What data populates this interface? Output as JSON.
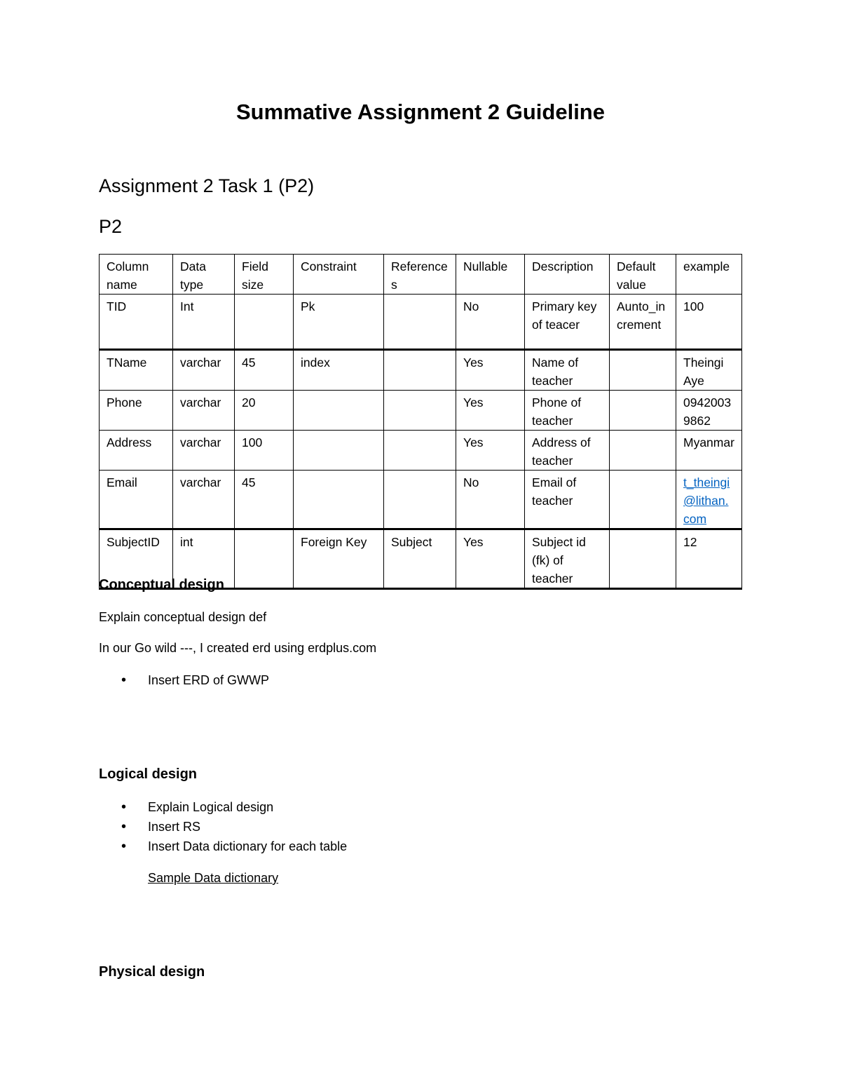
{
  "title": "Summative Assignment 2 Guideline",
  "task_heading": "Assignment 2 Task 1 (P2)",
  "sub_heading": "P2",
  "table": {
    "headers": [
      "Column name",
      "Data type",
      "Field size",
      "Constraint",
      "References",
      "Nullable",
      "Description",
      "Default value",
      "example"
    ],
    "rows": [
      [
        "TID",
        "Int",
        "",
        "Pk",
        "",
        "No",
        "Primary key of teacer",
        "Aunto_increment",
        "100"
      ],
      [
        "TName",
        "varchar",
        "45",
        "index",
        "",
        "Yes",
        "Name of teacher",
        "",
        "Theingi Aye"
      ],
      [
        "Phone",
        "varchar",
        "20",
        "",
        "",
        "Yes",
        "Phone of teacher",
        "",
        "09420039862"
      ],
      [
        "Address",
        "varchar",
        "100",
        "",
        "",
        "Yes",
        "Address of teacher",
        "",
        "Myanmar"
      ],
      [
        "Email",
        "varchar",
        "45",
        "",
        "",
        "No",
        "Email of teacher",
        "",
        "t_theingi@lithan.com"
      ],
      [
        "SubjectID",
        "int",
        "",
        "Foreign Key",
        "Subject",
        "Yes",
        "Subject id (fk) of teacher",
        "",
        "12"
      ]
    ]
  },
  "conceptual": {
    "heading": "Conceptual design",
    "line1": "Explain conceptual design def",
    "line2": "In our Go wild ---, I created erd using erdplus.com",
    "bullets": [
      "Insert ERD of GWWP"
    ]
  },
  "logical": {
    "heading": "Logical design",
    "bullets": [
      "Explain Logical design",
      "Insert RS",
      "Insert Data dictionary for each table"
    ],
    "link": "Sample Data dictionary"
  },
  "physical": {
    "heading": "Physical design"
  },
  "colors": {
    "link": "#0563c1"
  }
}
